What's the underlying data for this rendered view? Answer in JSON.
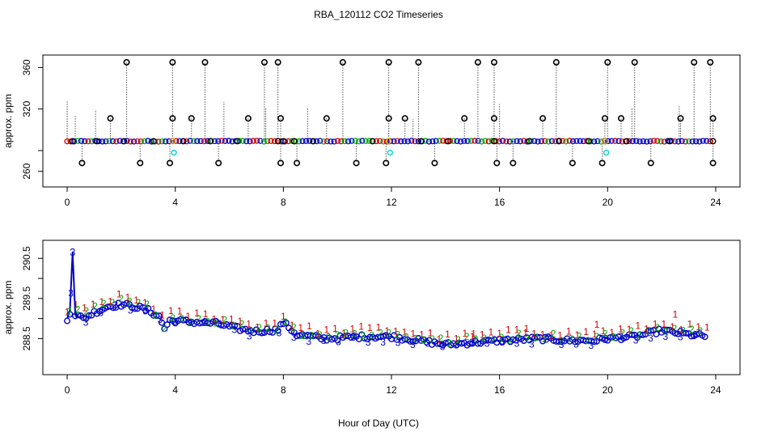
{
  "title": "RBA_120112  CO2 Timeseries",
  "xlabel": "Hour of Day (UTC)",
  "chart_data": [
    {
      "type": "scatter",
      "name": "top-panel",
      "ylabel": "approx. ppm",
      "xlim": [
        -0.9,
        24.9
      ],
      "ylim": [
        245,
        372
      ],
      "xticks": [
        0,
        4,
        8,
        12,
        16,
        20,
        24
      ],
      "yticks": [
        260,
        280,
        320,
        360
      ],
      "ytick_labels": [
        "260",
        "",
        "320",
        "360"
      ],
      "baseline": 289,
      "spike_high": 365,
      "spike_mid": 311,
      "spike_low": 268,
      "high_spike_times": [
        2.2,
        3.9,
        5.1,
        7.3,
        7.8,
        10.2,
        11.9,
        13.0,
        15.2,
        15.8,
        18.1,
        20.0,
        21.0,
        23.2,
        23.8
      ],
      "mid_spike_times": [
        1.6,
        3.9,
        4.6,
        6.7,
        7.9,
        9.6,
        11.9,
        12.5,
        14.7,
        15.8,
        17.6,
        19.9,
        20.5,
        22.7,
        23.9
      ],
      "low_spike_times": [
        0.55,
        2.7,
        3.8,
        5.6,
        7.9,
        8.5,
        10.7,
        11.8,
        13.6,
        15.9,
        16.5,
        18.7,
        19.8,
        21.6,
        23.9
      ],
      "cyan_points": [
        {
          "x": 3.95,
          "y": 278
        },
        {
          "x": 11.95,
          "y": 278
        },
        {
          "x": 19.95,
          "y": 278
        }
      ]
    },
    {
      "type": "scatter",
      "name": "bottom-panel",
      "ylabel": "approx. ppm",
      "xlim": [
        -0.9,
        24.9
      ],
      "ylim": [
        287.6,
        290.95
      ],
      "xticks": [
        0,
        4,
        8,
        12,
        16,
        20,
        24
      ],
      "yticks": [
        288.5,
        289.0,
        289.5,
        290.0,
        290.5
      ],
      "ytick_labels": [
        "288.5",
        "",
        "289.5",
        "",
        "290.5"
      ],
      "series": [
        {
          "name": "1",
          "color": "#d40000",
          "offset": 0.15
        },
        {
          "name": "2",
          "color": "#00a800",
          "offset": 0.05
        },
        {
          "name": "3",
          "color": "#0000c8",
          "offset": 0.0
        }
      ],
      "profile": [
        {
          "x": 0.0,
          "y": 289.0
        },
        {
          "x": 0.1,
          "y": 289.15
        },
        {
          "x": 0.2,
          "y": 290.65
        },
        {
          "x": 0.3,
          "y": 289.1
        },
        {
          "x": 0.6,
          "y": 289.0
        },
        {
          "x": 1.0,
          "y": 289.15
        },
        {
          "x": 1.5,
          "y": 289.3
        },
        {
          "x": 2.0,
          "y": 289.35
        },
        {
          "x": 2.5,
          "y": 289.3
        },
        {
          "x": 3.0,
          "y": 289.2
        },
        {
          "x": 3.4,
          "y": 289.05
        },
        {
          "x": 3.6,
          "y": 288.75
        },
        {
          "x": 3.8,
          "y": 288.95
        },
        {
          "x": 4.5,
          "y": 288.92
        },
        {
          "x": 5.5,
          "y": 288.88
        },
        {
          "x": 6.0,
          "y": 288.8
        },
        {
          "x": 6.5,
          "y": 288.72
        },
        {
          "x": 7.0,
          "y": 288.68
        },
        {
          "x": 7.8,
          "y": 288.72
        },
        {
          "x": 8.0,
          "y": 288.9
        },
        {
          "x": 8.5,
          "y": 288.6
        },
        {
          "x": 9.5,
          "y": 288.5
        },
        {
          "x": 11.0,
          "y": 288.55
        },
        {
          "x": 12.0,
          "y": 288.55
        },
        {
          "x": 13.0,
          "y": 288.45
        },
        {
          "x": 14.0,
          "y": 288.35
        },
        {
          "x": 15.0,
          "y": 288.4
        },
        {
          "x": 16.0,
          "y": 288.45
        },
        {
          "x": 17.5,
          "y": 288.5
        },
        {
          "x": 18.5,
          "y": 288.45
        },
        {
          "x": 19.5,
          "y": 288.45
        },
        {
          "x": 20.0,
          "y": 288.5
        },
        {
          "x": 21.0,
          "y": 288.55
        },
        {
          "x": 22.0,
          "y": 288.7
        },
        {
          "x": 23.0,
          "y": 288.6
        },
        {
          "x": 23.7,
          "y": 288.55
        }
      ]
    }
  ]
}
